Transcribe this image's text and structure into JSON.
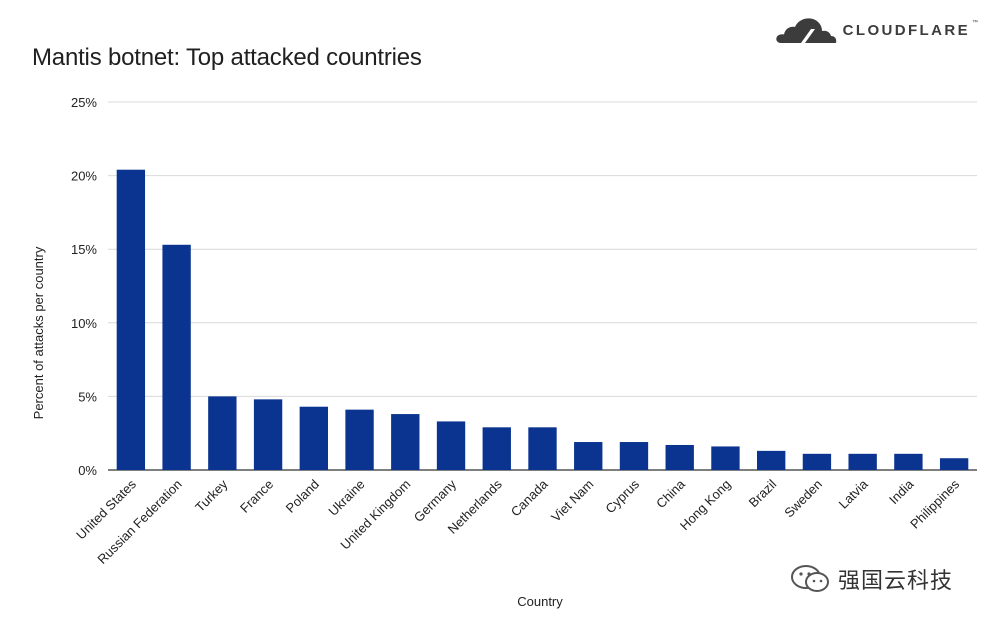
{
  "header": {
    "title": "Mantis botnet: Top attacked countries"
  },
  "brand": {
    "logo_text": "CLOUDFLARE",
    "logo_mark": "cloud-icon",
    "trademark": "™"
  },
  "watermark": {
    "text": "强国云科技",
    "icon": "wechat-icon"
  },
  "chart_data": {
    "type": "bar",
    "title": "Mantis botnet: Top attacked countries",
    "xlabel": "Country",
    "ylabel": "Percent of attacks per country",
    "ylim": [
      0,
      25
    ],
    "yticks": [
      0,
      5,
      10,
      15,
      20,
      25
    ],
    "ytick_labels": [
      "0%",
      "5%",
      "10%",
      "15%",
      "20%",
      "25%"
    ],
    "grid": true,
    "bar_color": "#0a3490",
    "categories": [
      "United States",
      "Russian Federation",
      "Turkey",
      "France",
      "Poland",
      "Ukraine",
      "United Kingdom",
      "Germany",
      "Netherlands",
      "Canada",
      "Viet Nam",
      "Cyprus",
      "China",
      "Hong Kong",
      "Brazil",
      "Sweden",
      "Latvia",
      "India",
      "Philippines"
    ],
    "values": [
      20.4,
      15.3,
      5.0,
      4.8,
      4.3,
      4.1,
      3.8,
      3.3,
      2.9,
      2.9,
      1.9,
      1.9,
      1.7,
      1.6,
      1.3,
      1.1,
      1.1,
      1.1,
      0.8
    ]
  }
}
